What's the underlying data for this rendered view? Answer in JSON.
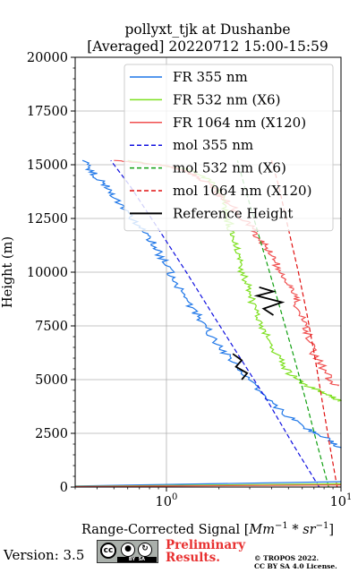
{
  "chart_data": {
    "type": "line",
    "title": "pollyxt_tjk at Dushanbe",
    "subtitle": "[Averaged] 20220712 15:00-15:59",
    "xlabel": "Range-Corrected Signal [Mm^-1 * sr^-1]",
    "ylabel": "Height (m)",
    "xscale": "log",
    "xlim": [
      0.3,
      10
    ],
    "ylim": [
      0,
      20000
    ],
    "xticks": [
      1,
      10
    ],
    "xtick_labels": [
      "10^0",
      "10^1"
    ],
    "yticks": [
      0,
      2500,
      5000,
      7500,
      10000,
      12500,
      15000,
      17500,
      20000
    ],
    "grid": true,
    "legend_position": "top-right",
    "series": [
      {
        "name": "FR 355 nm",
        "color": "#1f77e8",
        "style": "solid",
        "points": [
          [
            10,
            1800
          ],
          [
            8.5,
            2200
          ],
          [
            6.8,
            2600
          ],
          [
            5.2,
            3200
          ],
          [
            3.6,
            4200
          ],
          [
            2.9,
            5100
          ],
          [
            2.3,
            6000
          ],
          [
            1.9,
            6800
          ],
          [
            1.6,
            7700
          ],
          [
            1.35,
            8500
          ],
          [
            1.15,
            9400
          ],
          [
            1.05,
            10000
          ],
          [
            0.92,
            10800
          ],
          [
            0.85,
            11300
          ],
          [
            0.72,
            12000
          ],
          [
            0.6,
            12700
          ],
          [
            0.52,
            13400
          ],
          [
            0.45,
            14000
          ],
          [
            0.38,
            14600
          ],
          [
            0.33,
            15200
          ]
        ]
      },
      {
        "name": "FR 532 nm (X6)",
        "color": "#7ee020",
        "style": "solid",
        "points": [
          [
            10,
            4000
          ],
          [
            8.5,
            4300
          ],
          [
            6.5,
            4700
          ],
          [
            5.2,
            5200
          ],
          [
            4.4,
            6000
          ],
          [
            3.8,
            7000
          ],
          [
            3.4,
            7800
          ],
          [
            3.1,
            8600
          ],
          [
            2.9,
            9400
          ],
          [
            2.7,
            10200
          ],
          [
            2.55,
            10900
          ],
          [
            2.4,
            11600
          ],
          [
            2.3,
            12200
          ],
          [
            2.2,
            12800
          ],
          [
            2.05,
            13600
          ],
          [
            1.8,
            14300
          ],
          [
            1.3,
            14800
          ],
          [
            0.6,
            15200
          ]
        ]
      },
      {
        "name": "FR 1064 nm (X120)",
        "color": "#f05050",
        "style": "solid",
        "points": [
          [
            9.5,
            4700
          ],
          [
            8.5,
            5100
          ],
          [
            7.0,
            6200
          ],
          [
            6.5,
            7100
          ],
          [
            6.0,
            7800
          ],
          [
            5.5,
            8700
          ],
          [
            5.0,
            9300
          ],
          [
            4.6,
            9900
          ],
          [
            4.2,
            10500
          ],
          [
            3.8,
            11000
          ],
          [
            3.4,
            11600
          ],
          [
            3.0,
            12200
          ],
          [
            2.6,
            12700
          ],
          [
            2.2,
            13300
          ],
          [
            1.9,
            13800
          ],
          [
            1.6,
            14300
          ],
          [
            1.3,
            14700
          ],
          [
            0.9,
            15000
          ],
          [
            0.5,
            15200
          ]
        ]
      },
      {
        "name": "mol 355 nm",
        "color": "#1010e0",
        "style": "dashed",
        "points": [
          [
            7.5,
            0
          ],
          [
            5.3,
            2000
          ],
          [
            3.8,
            4000
          ],
          [
            2.65,
            6000
          ],
          [
            1.85,
            8000
          ],
          [
            1.3,
            10000
          ],
          [
            0.9,
            12000
          ],
          [
            0.62,
            14000
          ],
          [
            0.48,
            15200
          ]
        ]
      },
      {
        "name": "mol 532 nm (X6)",
        "color": "#10a010",
        "style": "dashed",
        "points": [
          [
            8.5,
            0
          ],
          [
            7.3,
            2000
          ],
          [
            6.3,
            4000
          ],
          [
            5.4,
            6000
          ],
          [
            4.6,
            8000
          ],
          [
            3.9,
            10000
          ],
          [
            3.3,
            12000
          ],
          [
            2.8,
            14000
          ],
          [
            2.55,
            15200
          ]
        ]
      },
      {
        "name": "mol 1064 nm (X120)",
        "color": "#e01010",
        "style": "dashed",
        "points": [
          [
            9.5,
            0
          ],
          [
            8.6,
            2000
          ],
          [
            7.8,
            4000
          ],
          [
            7.1,
            6000
          ],
          [
            6.4,
            8000
          ],
          [
            5.7,
            10000
          ],
          [
            5.0,
            12000
          ],
          [
            4.4,
            14000
          ],
          [
            4.0,
            15200
          ]
        ]
      },
      {
        "name": "Reference Height",
        "color": "#000000",
        "style": "solid",
        "segments": [
          [
            [
              2.4,
              6200
            ],
            [
              2.7,
              5900
            ],
            [
              2.5,
              5600
            ],
            [
              2.9,
              5300
            ],
            [
              2.7,
              5000
            ]
          ],
          [
            [
              3.4,
              9300
            ],
            [
              4.1,
              9100
            ],
            [
              3.3,
              8900
            ],
            [
              4.6,
              8600
            ],
            [
              3.6,
              8300
            ],
            [
              4.1,
              8000
            ]
          ]
        ]
      }
    ]
  },
  "legend": {
    "items": [
      "FR 355 nm",
      "FR 532 nm (X6)",
      "FR 1064 nm (X120)",
      "mol 355 nm",
      "mol 532 nm (X6)",
      "mol 1064 nm (X120)",
      "Reference Height"
    ]
  },
  "footer": {
    "version": "Version: 3.5",
    "license_badge": {
      "labels": [
        "cc",
        "BY",
        "SA"
      ]
    },
    "preliminary_line1": "Preliminary",
    "preliminary_line2": "Results.",
    "copyright_line1": "© TROPOS 2022.",
    "copyright_line2": "CC BY SA 4.0 License."
  }
}
